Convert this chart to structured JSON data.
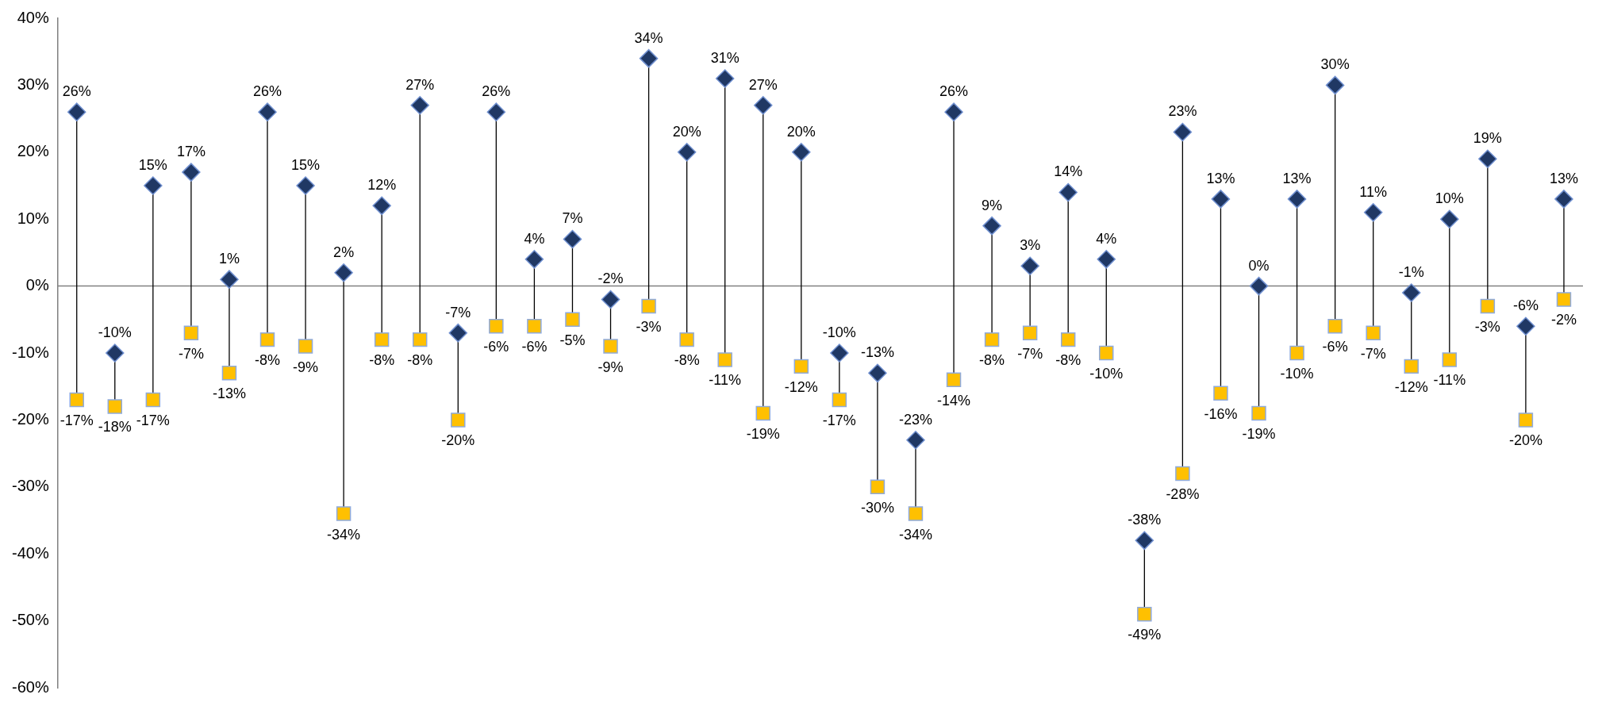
{
  "chart_data": {
    "type": "scatter",
    "categories": [
      null,
      null,
      null,
      null,
      null,
      null,
      null,
      null,
      null,
      null,
      null,
      null,
      null,
      null,
      null,
      null,
      null,
      null,
      null,
      null,
      null,
      null,
      null,
      null,
      null,
      null,
      null,
      null,
      null,
      null,
      null,
      null,
      null,
      null,
      null,
      null,
      null,
      null,
      null,
      null
    ],
    "series": [
      {
        "type": "scatter",
        "marker": "diamond",
        "color": "#203864",
        "values": [
          26,
          -10,
          15,
          17,
          1,
          26,
          15,
          2,
          12,
          27,
          -7,
          26,
          4,
          7,
          -2,
          34,
          20,
          31,
          27,
          20,
          -10,
          -13,
          -23,
          26,
          9,
          3,
          14,
          4,
          -38,
          23,
          13,
          0,
          13,
          30,
          11,
          -1,
          10,
          19,
          -6,
          13
        ],
        "value_labels": [
          "26%",
          "-10%",
          "15%",
          "17%",
          "1%",
          "26%",
          "15%",
          "2%",
          "12%",
          "27%",
          "-7%",
          "26%",
          "4%",
          "7%",
          "-2%",
          "34%",
          "20%",
          "31%",
          "27%",
          "20%",
          "-10%",
          "-13%",
          "-23%",
          "26%",
          "9%",
          "3%",
          "14%",
          "4%",
          "-38%",
          "23%",
          "13%",
          "0%",
          "13%",
          "30%",
          "11%",
          "-1%",
          "10%",
          "19%",
          "-6%",
          "13%"
        ]
      },
      {
        "type": "scatter",
        "marker": "square",
        "color": "#ffc000",
        "values": [
          -17,
          -18,
          -17,
          -7,
          -13,
          -8,
          -9,
          -34,
          -8,
          -8,
          -20,
          -6,
          -6,
          -5,
          -9,
          -3,
          -8,
          -11,
          -19,
          -12,
          -17,
          -30,
          -34,
          -14,
          -8,
          -7,
          -8,
          -10,
          -49,
          -28,
          -16,
          -19,
          -10,
          -6,
          -7,
          -12,
          -11,
          -3,
          -20,
          -2
        ],
        "value_labels": [
          "-17%",
          "-18%",
          "-17%",
          "-7%",
          "-13%",
          "-8%",
          "-9%",
          "-34%",
          "-8%",
          "-8%",
          "-20%",
          "-6%",
          "-6%",
          "-5%",
          "-9%",
          "-3%",
          "-8%",
          "-11%",
          "-19%",
          "-12%",
          "-17%",
          "-30%",
          "-34%",
          "-14%",
          "-8%",
          "-7%",
          "-8%",
          "-10%",
          "-49%",
          "-28%",
          "-16%",
          "-19%",
          "-10%",
          "-6%",
          "-7%",
          "-12%",
          "-11%",
          "-3%",
          "-20%",
          "-2%"
        ]
      }
    ],
    "ylim": [
      -60,
      40
    ],
    "yticks": [
      {
        "value": -60,
        "label": "-60%"
      },
      {
        "value": -50,
        "label": "-50%"
      },
      {
        "value": -40,
        "label": "-40%"
      },
      {
        "value": -30,
        "label": "-30%"
      },
      {
        "value": -20,
        "label": "-20%"
      },
      {
        "value": -10,
        "label": "-10%"
      },
      {
        "value": 0,
        "label": "0%"
      },
      {
        "value": 10,
        "label": "10%"
      },
      {
        "value": 20,
        "label": "20%"
      },
      {
        "value": 30,
        "label": "30%"
      },
      {
        "value": 40,
        "label": "40%"
      }
    ],
    "ref_lines": [
      {
        "axis": "y",
        "value": 0,
        "color": "#808080"
      }
    ],
    "tick_labels": "y",
    "grid": false,
    "legend": false
  }
}
